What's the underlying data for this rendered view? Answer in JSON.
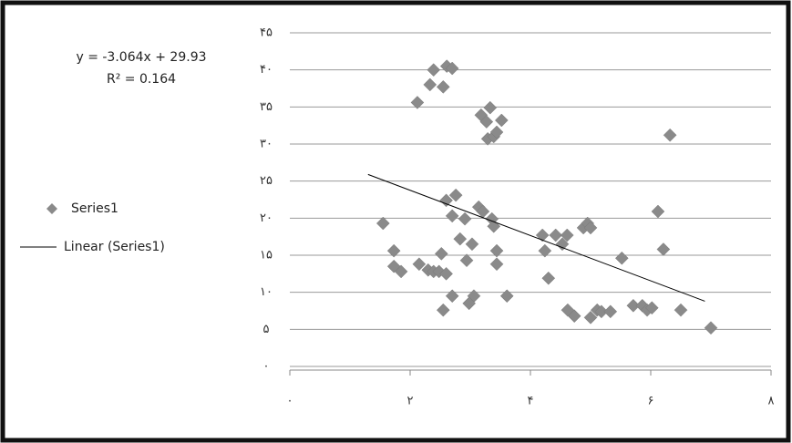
{
  "chart_data": {
    "type": "scatter",
    "annotations": [
      "y = -3.064x + 29.93",
      "R² = 0.164"
    ],
    "xlim": [
      0,
      8
    ],
    "xticks": [
      {
        "value": 0,
        "label": "٠"
      },
      {
        "value": 2,
        "label": "٢"
      },
      {
        "value": 4,
        "label": "۴"
      },
      {
        "value": 6,
        "label": "۶"
      },
      {
        "value": 8,
        "label": "٨"
      }
    ],
    "ylim": [
      0,
      45
    ],
    "yticks": [
      {
        "value": 0,
        "label": "٠"
      },
      {
        "value": 5,
        "label": "۵"
      },
      {
        "value": 10,
        "label": "۱۰"
      },
      {
        "value": 15,
        "label": "۱۵"
      },
      {
        "value": 20,
        "label": "۲۰"
      },
      {
        "value": 25,
        "label": "۲۵"
      },
      {
        "value": 30,
        "label": "۳۰"
      },
      {
        "value": 35,
        "label": "۳۵"
      },
      {
        "value": 40,
        "label": "۴۰"
      },
      {
        "value": 45,
        "label": "۴۵"
      }
    ],
    "grid": true,
    "legend": "left",
    "series": [
      {
        "name": "Series1",
        "color": "#8a8a8a",
        "marker": "diamond",
        "x": [
          1.55,
          1.73,
          1.85,
          1.73,
          2.12,
          2.33,
          2.55,
          2.39,
          2.61,
          2.7,
          2.15,
          2.3,
          2.39,
          2.48,
          2.6,
          2.55,
          2.52,
          2.6,
          2.7,
          2.76,
          2.83,
          2.91,
          2.7,
          2.94,
          3.03,
          3.06,
          2.98,
          3.14,
          3.21,
          3.18,
          3.27,
          3.29,
          3.33,
          3.39,
          3.44,
          3.52,
          3.36,
          3.39,
          3.44,
          3.44,
          3.61,
          4.2,
          4.24,
          4.3,
          4.42,
          4.53,
          4.61,
          4.62,
          4.73,
          4.88,
          4.95,
          5.0,
          5.0,
          5.11,
          5.18,
          5.33,
          5.52,
          5.71,
          5.86,
          5.94,
          6.02,
          6.12,
          6.21,
          6.32,
          6.5,
          7.0
        ],
        "values": [
          19.3,
          15.6,
          12.8,
          13.5,
          35.6,
          38.0,
          37.7,
          40.0,
          40.5,
          40.2,
          13.8,
          13.0,
          12.8,
          12.8,
          12.5,
          7.6,
          15.2,
          22.4,
          20.3,
          23.1,
          17.2,
          19.9,
          9.5,
          14.3,
          16.5,
          9.5,
          8.5,
          21.5,
          20.9,
          33.9,
          33.0,
          30.7,
          34.9,
          31.0,
          31.6,
          33.2,
          19.9,
          18.9,
          15.6,
          13.8,
          9.5,
          17.7,
          15.6,
          11.9,
          17.7,
          16.5,
          17.7,
          7.6,
          6.8,
          18.7,
          19.3,
          18.7,
          6.6,
          7.6,
          7.4,
          7.4,
          14.6,
          8.2,
          8.2,
          7.6,
          7.9,
          20.9,
          15.8,
          31.2,
          7.6,
          5.2
        ]
      },
      {
        "name": "Linear (Series1)",
        "color": "#000000",
        "marker": "line",
        "x": [
          1.3,
          6.9
        ],
        "values": [
          25.9,
          8.8
        ]
      }
    ]
  }
}
